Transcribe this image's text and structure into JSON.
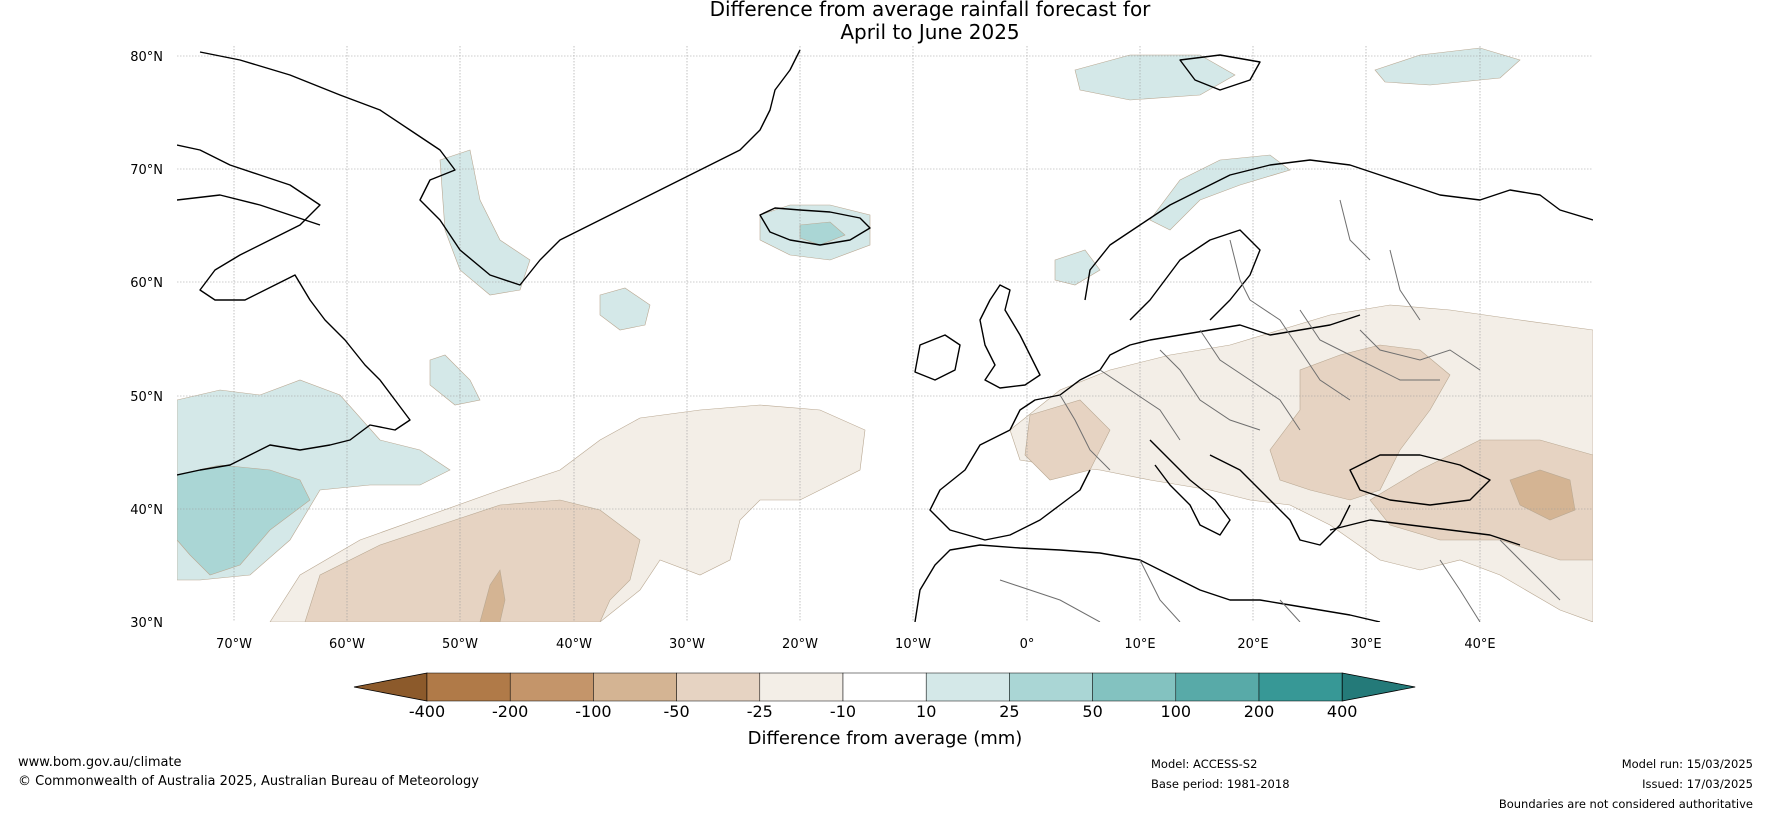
{
  "title": {
    "line1": "Difference from average rainfall forecast for",
    "line2": "April to June 2025"
  },
  "map": {
    "lat_labels": [
      "80°N",
      "70°N",
      "60°N",
      "50°N",
      "40°N",
      "30°N"
    ],
    "lon_labels": [
      "70°W",
      "60°W",
      "50°W",
      "40°W",
      "30°W",
      "20°W",
      "10°W",
      "0°",
      "10°E",
      "20°E",
      "30°E",
      "40°E"
    ],
    "extent": {
      "lon": [
        -75,
        50
      ],
      "lat": [
        30,
        81
      ]
    }
  },
  "colorbar": {
    "label": "Difference from average (mm)",
    "ticks": [
      "-400",
      "-200",
      "-100",
      "-50",
      "-25",
      "-10",
      "10",
      "25",
      "50",
      "100",
      "200",
      "400"
    ],
    "colors": [
      "#8c5a2b",
      "#b07a48",
      "#c4956a",
      "#d4b493",
      "#e6d3c2",
      "#f3eee7",
      "#ffffff",
      "#d4e8e8",
      "#aad6d5",
      "#83c2c0",
      "#58aaa8",
      "#379896",
      "#247a79"
    ]
  },
  "footer": {
    "url": "www.bom.gov.au/climate",
    "copyright": "© Commonwealth of Australia 2025, Australian Bureau of Meteorology",
    "model": "Model: ACCESS-S2",
    "base_period": "Base period: 1981-2018",
    "model_run": "Model run: 15/03/2025",
    "issued": "Issued: 17/03/2025",
    "disclaimer": "Boundaries are not considered authoritative"
  }
}
